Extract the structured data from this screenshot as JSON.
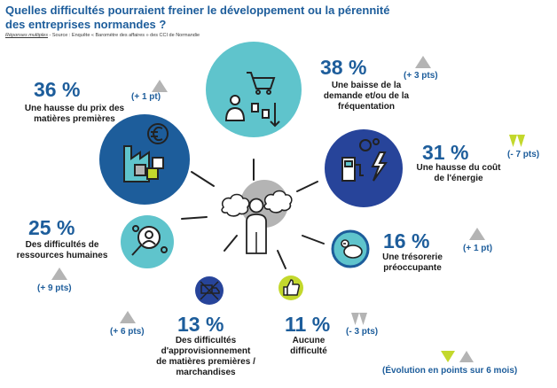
{
  "chart_data": {
    "type": "infographic",
    "title": "Quelles difficultés pourraient freiner le développement ou la pérennité des entreprises normandes ?",
    "subtitle_note": "Réponses multiples",
    "source": " - Source : Enquête « Baromètre des affaires » des CCI de Normandie",
    "legend_text": "(Évolution en points sur 6 mois)",
    "unit": "%",
    "items": [
      {
        "key": "prix",
        "value": 36,
        "value_label": "36 %",
        "label_lines": [
          "Une hausse du prix des",
          "matières premières"
        ],
        "change": 1,
        "change_label": "(+ 1 pt)",
        "direction": "up"
      },
      {
        "key": "demande",
        "value": 38,
        "value_label": "38 %",
        "label_lines": [
          "Une baisse de la",
          "demande et/ou de la",
          "fréquentation"
        ],
        "change": 3,
        "change_label": "(+ 3 pts)",
        "direction": "up"
      },
      {
        "key": "energie",
        "value": 31,
        "value_label": "31 %",
        "label_lines": [
          "Une hausse du coût",
          "de l'énergie"
        ],
        "change": -7,
        "change_label": "(- 7 pts)",
        "direction": "down"
      },
      {
        "key": "rh",
        "value": 25,
        "value_label": "25 %",
        "label_lines": [
          "Des difficultés de",
          "ressources humaines"
        ],
        "change": 9,
        "change_label": "(+ 9 pts)",
        "direction": "up"
      },
      {
        "key": "tresorerie",
        "value": 16,
        "value_label": "16 %",
        "label_lines": [
          "Une trésorerie",
          "préoccupante"
        ],
        "change": 1,
        "change_label": "(+ 1 pt)",
        "direction": "up"
      },
      {
        "key": "appro",
        "value": 13,
        "value_label": "13 %",
        "label_lines": [
          "Des difficultés",
          "d'approvisionnement",
          "de matières premières /",
          "marchandises"
        ],
        "change": 6,
        "change_label": "(+ 6 pts)",
        "direction": "up"
      },
      {
        "key": "aucune",
        "value": 11,
        "value_label": "11 %",
        "label_lines": [
          "Aucune",
          "difficulté"
        ],
        "change": -3,
        "change_label": "(- 3 pts)",
        "direction": "down"
      }
    ],
    "colors": {
      "dark_blue": "#1d5d9b",
      "teal": "#5fc4cc",
      "navy": "#27449a",
      "lime": "#c3d82c",
      "grey": "#b4b4b4"
    }
  }
}
